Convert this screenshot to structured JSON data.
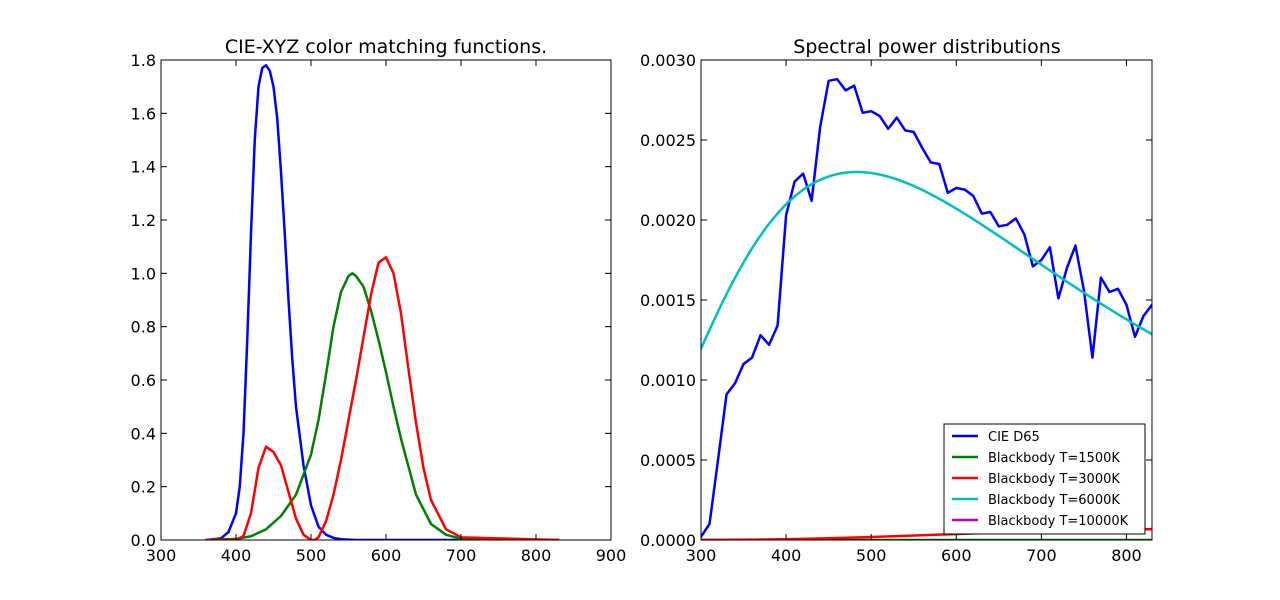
{
  "chart_data": [
    {
      "type": "line",
      "title": "CIE-XYZ color matching functions.",
      "xlabel": "",
      "ylabel": "",
      "xlim": [
        300,
        900
      ],
      "ylim": [
        0,
        1.8
      ],
      "xticks": [
        "300",
        "400",
        "500",
        "600",
        "700",
        "800",
        "900"
      ],
      "yticks": [
        "0.0",
        "0.2",
        "0.4",
        "0.6",
        "0.8",
        "1.0",
        "1.2",
        "1.4",
        "1.6",
        "1.8"
      ],
      "grid": false,
      "series": [
        {
          "color": "#0000ff",
          "x": [
            360,
            380,
            390,
            400,
            405,
            410,
            415,
            420,
            425,
            430,
            435,
            440,
            445,
            450,
            455,
            460,
            465,
            470,
            475,
            480,
            490,
            500,
            510,
            520,
            530,
            540,
            560,
            600,
            700,
            830
          ],
          "y": [
            0.0,
            0.006,
            0.03,
            0.1,
            0.2,
            0.4,
            0.75,
            1.15,
            1.5,
            1.7,
            1.77,
            1.78,
            1.76,
            1.7,
            1.58,
            1.38,
            1.15,
            0.9,
            0.68,
            0.5,
            0.28,
            0.13,
            0.05,
            0.02,
            0.008,
            0.003,
            0.0,
            0.0,
            0.0,
            0.0
          ]
        },
        {
          "color": "#008000",
          "x": [
            360,
            400,
            420,
            440,
            460,
            480,
            500,
            510,
            520,
            530,
            540,
            550,
            555,
            560,
            570,
            580,
            590,
            600,
            610,
            620,
            640,
            660,
            680,
            700,
            830
          ],
          "y": [
            0.0,
            0.004,
            0.014,
            0.04,
            0.09,
            0.17,
            0.32,
            0.45,
            0.62,
            0.8,
            0.93,
            0.99,
            1.0,
            0.99,
            0.95,
            0.86,
            0.75,
            0.63,
            0.5,
            0.38,
            0.17,
            0.06,
            0.02,
            0.004,
            0.0
          ]
        },
        {
          "color": "#ff0000",
          "x": [
            360,
            400,
            410,
            420,
            430,
            440,
            450,
            460,
            470,
            480,
            490,
            500,
            505,
            510,
            520,
            530,
            540,
            560,
            580,
            590,
            600,
            610,
            620,
            630,
            640,
            650,
            660,
            680,
            700,
            830
          ],
          "y": [
            0.0,
            0.0,
            0.015,
            0.1,
            0.27,
            0.35,
            0.33,
            0.28,
            0.18,
            0.08,
            0.02,
            0.0,
            0.0,
            0.01,
            0.07,
            0.17,
            0.3,
            0.6,
            0.92,
            1.04,
            1.06,
            1.0,
            0.85,
            0.64,
            0.44,
            0.27,
            0.15,
            0.04,
            0.01,
            0.0
          ]
        }
      ]
    },
    {
      "type": "line",
      "title": "Spectral power distributions",
      "xlabel": "",
      "ylabel": "",
      "xlim": [
        300,
        830
      ],
      "ylim": [
        0,
        0.003
      ],
      "xticks": [
        "300",
        "400",
        "500",
        "600",
        "700",
        "800"
      ],
      "yticks": [
        "0.0000",
        "0.0005",
        "0.0010",
        "0.0015",
        "0.0020",
        "0.0025",
        "0.0030"
      ],
      "grid": false,
      "legend_position": "lower-right",
      "series": [
        {
          "name": "CIE D65",
          "color": "#0000ff",
          "x": [
            300,
            310,
            320,
            330,
            340,
            350,
            360,
            370,
            380,
            390,
            400,
            410,
            420,
            430,
            440,
            450,
            460,
            470,
            480,
            490,
            500,
            510,
            520,
            530,
            540,
            550,
            560,
            570,
            580,
            590,
            600,
            610,
            620,
            630,
            640,
            650,
            660,
            670,
            680,
            690,
            700,
            710,
            720,
            730,
            740,
            750,
            760,
            770,
            780,
            790,
            800,
            810,
            820,
            830
          ],
          "y": [
            2e-05,
            0.0001,
            0.0005,
            0.00091,
            0.00098,
            0.0011,
            0.00114,
            0.00128,
            0.00122,
            0.00134,
            0.00203,
            0.00224,
            0.00229,
            0.00212,
            0.00258,
            0.00287,
            0.00288,
            0.00281,
            0.00284,
            0.00267,
            0.00268,
            0.00265,
            0.00257,
            0.00264,
            0.00256,
            0.00255,
            0.00245,
            0.00236,
            0.00235,
            0.00217,
            0.0022,
            0.00219,
            0.00215,
            0.00204,
            0.00205,
            0.00196,
            0.00197,
            0.00201,
            0.00191,
            0.00171,
            0.00175,
            0.00183,
            0.00151,
            0.0017,
            0.00184,
            0.00156,
            0.00114,
            0.00164,
            0.00155,
            0.00157,
            0.00147,
            0.00127,
            0.0014,
            0.00147
          ]
        },
        {
          "name": "Blackbody T=1500K",
          "color": "#008000",
          "temperature": 1500
        },
        {
          "name": "Blackbody T=3000K",
          "color": "#ff0000",
          "temperature": 3000
        },
        {
          "name": "Blackbody T=6000K",
          "color": "#00bfbf",
          "temperature": 6000
        },
        {
          "name": "Blackbody T=10000K",
          "color": "#bf00bf",
          "temperature": 10000
        }
      ]
    }
  ]
}
